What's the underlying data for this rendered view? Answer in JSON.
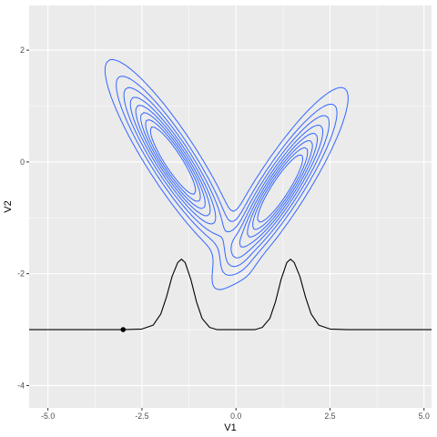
{
  "chart_data": {
    "type": "line",
    "title": "",
    "xlabel": "V1",
    "ylabel": "V2",
    "xlim": [
      -5.5,
      5.2
    ],
    "ylim": [
      -4.4,
      2.8
    ],
    "grid": true,
    "x_ticks": [
      "-5.0",
      "-2.5",
      "0.0",
      "2.5",
      "5.0"
    ],
    "x_tick_values": [
      -5.0,
      -2.5,
      0.0,
      2.5,
      5.0
    ],
    "y_ticks": [
      "2",
      "0",
      "-2",
      "-4"
    ],
    "y_tick_values": [
      2,
      0,
      -2,
      -4
    ],
    "colors": {
      "contour": "#3366FF",
      "curve": "#000000",
      "panel": "#EBEBEB",
      "grid": "#FFFFFF"
    },
    "density_contours": {
      "description_levels": 8,
      "outer_shape": "V",
      "left_arm": {
        "x": [
          -3.5,
          -1.3
        ],
        "y": [
          2.1,
          0.0
        ]
      },
      "right_arm": {
        "x": [
          1.3,
          3.5
        ],
        "y": [
          0.0,
          2.1
        ]
      },
      "bottom": {
        "x": 0.0,
        "y": -2.1
      }
    },
    "series": [
      {
        "x": [
          -5.5,
          -3.0,
          -2.5,
          -2.2,
          -2.0,
          -1.85,
          -1.7,
          -1.55,
          -1.45,
          -1.35,
          -1.2,
          -1.05,
          -0.9,
          -0.7,
          -0.5,
          0.0,
          0.5,
          0.7,
          0.9,
          1.05,
          1.2,
          1.35,
          1.45,
          1.55,
          1.7,
          1.85,
          2.0,
          2.2,
          2.5,
          3.0,
          5.2
        ],
        "y": [
          -3.0,
          -3.0,
          -2.99,
          -2.92,
          -2.72,
          -2.42,
          -2.05,
          -1.8,
          -1.74,
          -1.8,
          -2.1,
          -2.5,
          -2.8,
          -2.96,
          -3.0,
          -3.0,
          -3.0,
          -2.96,
          -2.8,
          -2.5,
          -2.1,
          -1.8,
          -1.74,
          -1.8,
          -2.05,
          -2.42,
          -2.72,
          -2.92,
          -2.99,
          -3.0,
          -3.0
        ]
      }
    ],
    "points": [
      {
        "x": -3.0,
        "y": -3.0
      }
    ]
  }
}
